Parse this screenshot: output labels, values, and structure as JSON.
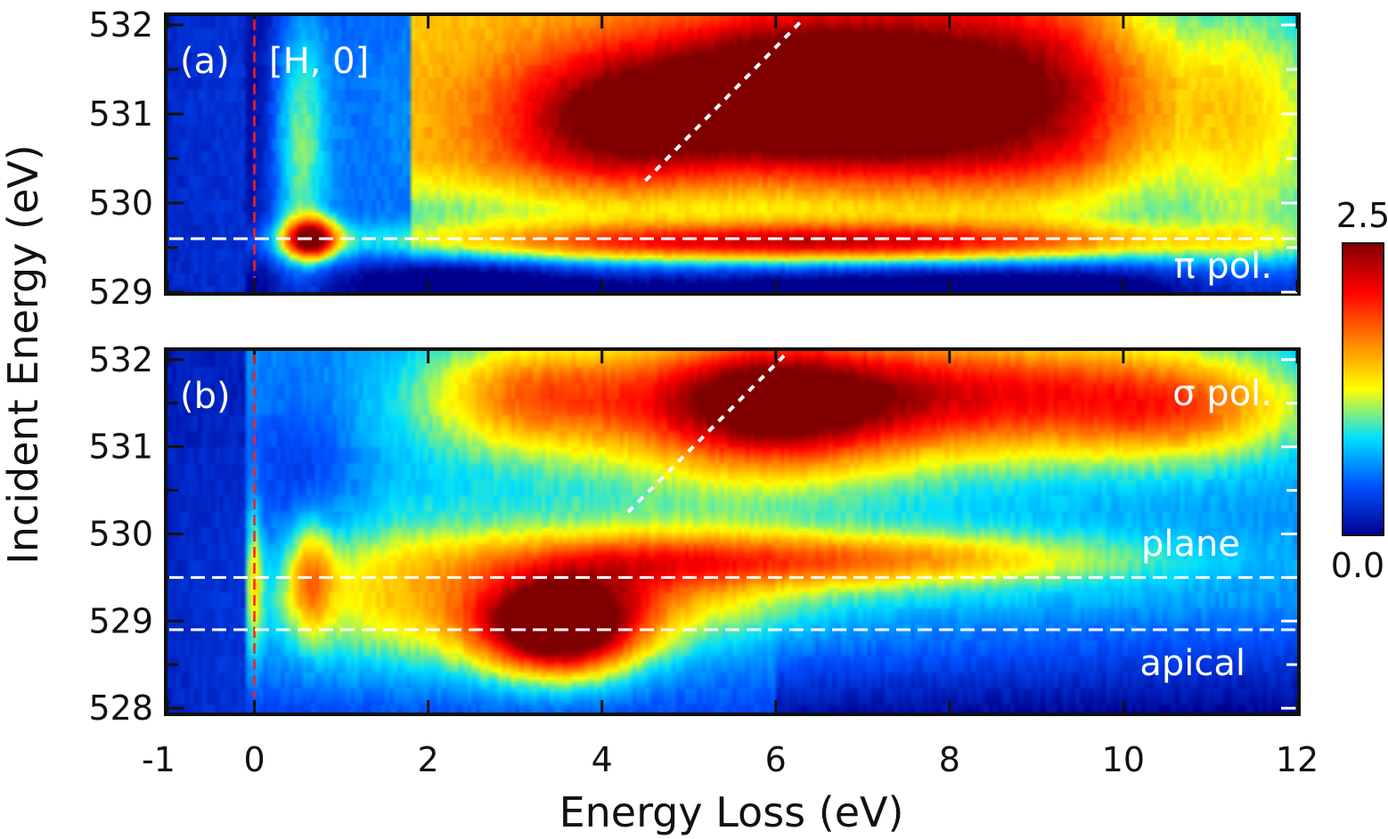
{
  "chart_data": {
    "type": "heatmap",
    "xlabel": "Energy Loss (eV)",
    "ylabel": "Incident Energy (eV)",
    "xlim": [
      -1,
      12
    ],
    "x_ticks": [
      -1,
      0,
      2,
      4,
      6,
      8,
      10,
      12
    ],
    "x_tick_labels": [
      "-1",
      "0",
      "2",
      "4",
      "6",
      "8",
      "10",
      "12"
    ],
    "colorbar": {
      "min": 0.0,
      "max": 2.5,
      "min_label": "0.0",
      "max_label": "2.5",
      "colormap": [
        "#00008f",
        "#0050ff",
        "#00dfff",
        "#ffff00",
        "#ff8000",
        "#ff0000",
        "#800000"
      ]
    },
    "panels": [
      {
        "id": "a",
        "label": "(a)",
        "q_label": "[H, 0]",
        "polarization": "π pol.",
        "ylim": [
          529,
          532.1
        ],
        "y_ticks": [
          529,
          530,
          531,
          532
        ],
        "y_tick_labels": [
          "529",
          "530",
          "531",
          "532"
        ],
        "elastic_line": 0,
        "hlines": [
          {
            "value": 529.6,
            "label": ""
          }
        ],
        "diagonal": {
          "from": [
            4.5,
            530.25
          ],
          "to": [
            6.3,
            532.05
          ]
        },
        "features": [
          {
            "center": [
              0.6,
              529.6
            ],
            "amplitude": 2.2
          },
          {
            "center": [
              6.5,
              531.3
            ],
            "amplitude": 2.6
          },
          {
            "center": [
              3.7,
              530.9
            ],
            "amplitude": 1.9
          },
          {
            "center": [
              8.8,
              531.0
            ],
            "amplitude": 1.8
          },
          {
            "center": [
              4.8,
              529.55
            ],
            "amplitude": 2.4
          },
          {
            "center": [
              8.0,
              529.6
            ],
            "amplitude": 2.0
          }
        ]
      },
      {
        "id": "b",
        "label": "(b)",
        "q_label": "",
        "polarization": "σ pol.",
        "ylim": [
          527.95,
          532.1
        ],
        "y_ticks": [
          528,
          529,
          530,
          531,
          532
        ],
        "y_tick_labels": [
          "528",
          "529",
          "530",
          "531",
          "532"
        ],
        "elastic_line": 0,
        "hlines": [
          {
            "value": 529.5,
            "label": "plane"
          },
          {
            "value": 528.9,
            "label": "apical"
          }
        ],
        "diagonal": {
          "from": [
            4.3,
            530.25
          ],
          "to": [
            6.1,
            532.05
          ]
        },
        "features": [
          {
            "center": [
              3.5,
              528.9
            ],
            "amplitude": 2.6
          },
          {
            "center": [
              5.8,
              531.6
            ],
            "amplitude": 2.4
          },
          {
            "center": [
              8.3,
              531.6
            ],
            "amplitude": 2.2
          },
          {
            "center": [
              3.0,
              531.6
            ],
            "amplitude": 1.8
          },
          {
            "center": [
              6.5,
              529.7
            ],
            "amplitude": 1.6
          },
          {
            "center": [
              0.65,
              529.6
            ],
            "amplitude": 1.5
          }
        ]
      }
    ]
  }
}
